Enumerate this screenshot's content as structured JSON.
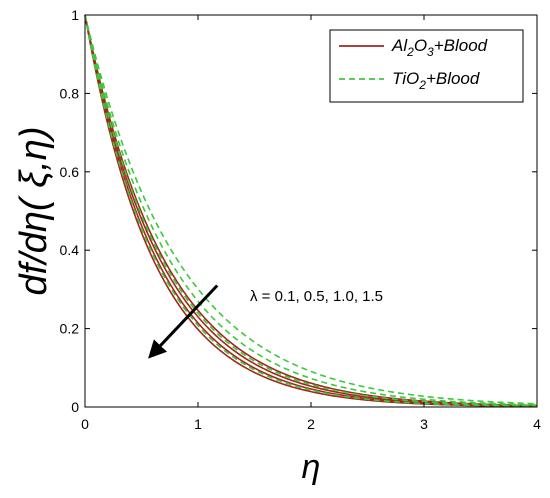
{
  "chart_data": {
    "type": "line",
    "xlabel": "η",
    "ylabel": "df/dη( ξ,η)",
    "xlim": [
      0,
      4
    ],
    "ylim": [
      0,
      1
    ],
    "xticks": [
      "0",
      "1",
      "2",
      "3",
      "4"
    ],
    "yticks": [
      "0",
      "0.2",
      "0.4",
      "0.6",
      "0.8",
      "1"
    ],
    "grid": false,
    "legend_position": "top-right",
    "legend": [
      {
        "prefix": "Al",
        "sub1": "2",
        "mid": "O",
        "sub2": "3",
        "suffix": "+Blood",
        "style": "solid",
        "color": "#a0281e"
      },
      {
        "prefix": "TiO",
        "sub1": "2",
        "mid": "",
        "sub2": "",
        "suffix": "+Blood",
        "style": "dashed",
        "color": "#3cc83c"
      }
    ],
    "annotation": {
      "text": "λ = 0.1, 0.5, 1.0, 1.5",
      "arrow_from": [
        1.17,
        0.31
      ],
      "arrow_to": [
        0.58,
        0.13
      ]
    },
    "series": [
      {
        "group": "Al2O3",
        "style": "solid",
        "color": "#a0281e",
        "decay": 1.62
      },
      {
        "group": "Al2O3",
        "style": "solid",
        "color": "#a0281e",
        "decay": 1.54
      },
      {
        "group": "Al2O3",
        "style": "solid",
        "color": "#a0281e",
        "decay": 1.47
      },
      {
        "group": "Al2O3",
        "style": "solid",
        "color": "#a0281e",
        "decay": 1.4
      },
      {
        "group": "TiO2",
        "style": "dashed",
        "color": "#3cc83c",
        "decay": 1.57
      },
      {
        "group": "TiO2",
        "style": "dashed",
        "color": "#3cc83c",
        "decay": 1.43
      },
      {
        "group": "TiO2",
        "style": "dashed",
        "color": "#3cc83c",
        "decay": 1.31
      },
      {
        "group": "TiO2",
        "style": "dashed",
        "color": "#3cc83c",
        "decay": 1.2
      }
    ]
  }
}
